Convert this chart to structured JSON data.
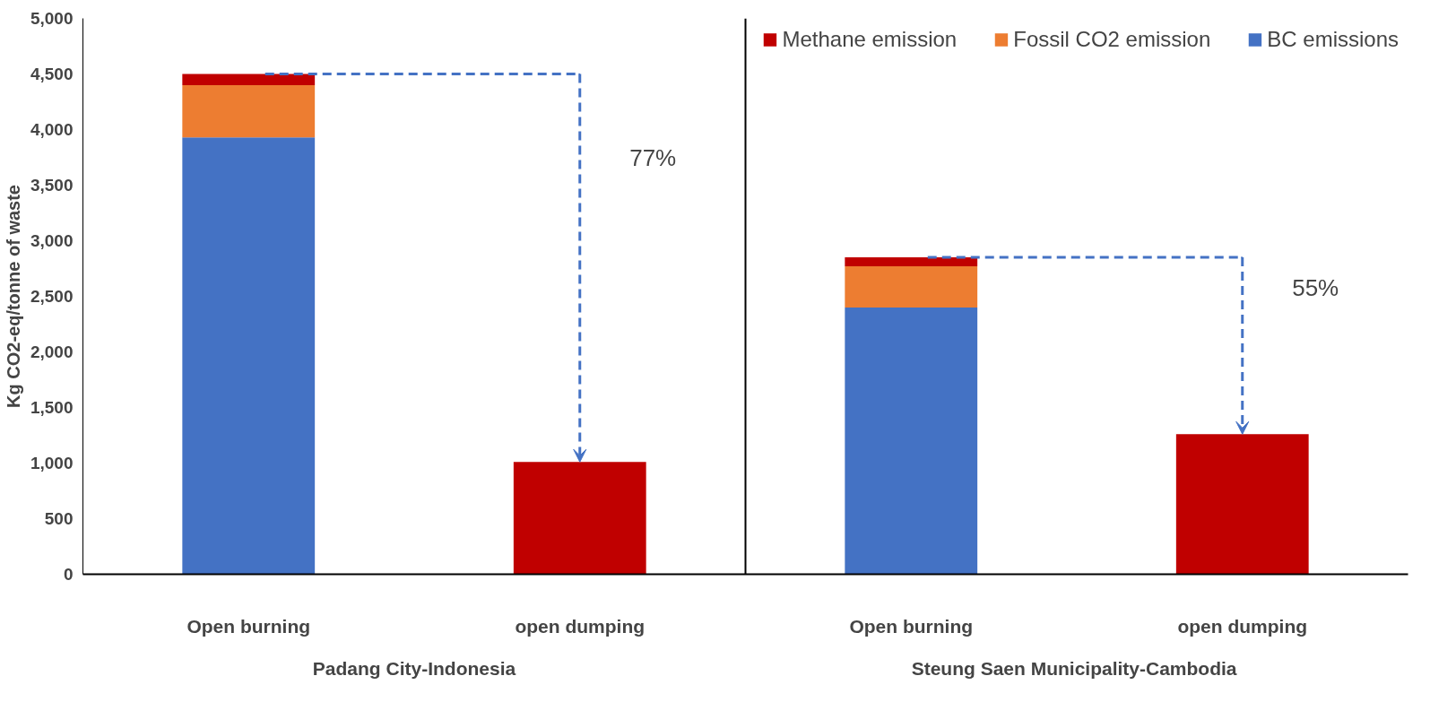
{
  "chart_data": {
    "type": "bar",
    "stacked": true,
    "ylabel": "Kg CO2-eq/tonne of waste",
    "categories": [
      "Open burning",
      "open dumping",
      "Open burning",
      "open dumping"
    ],
    "series": [
      {
        "name": "BC emissions",
        "color": "#4472c4",
        "values": [
          3930,
          null,
          2400,
          null
        ]
      },
      {
        "name": "Fossil CO2 emission",
        "color": "#ed7d31",
        "values": [
          470,
          null,
          370,
          null
        ]
      },
      {
        "name": "Methane emission",
        "color": "#c00000",
        "values": [
          100,
          1010,
          80,
          1260
        ]
      }
    ],
    "ylim": [
      0,
      5000
    ],
    "yticks": [
      {
        "value": 0,
        "label": "0"
      },
      {
        "value": 500,
        "label": "500"
      },
      {
        "value": 1000,
        "label": "1,000"
      },
      {
        "value": 1500,
        "label": "1,500"
      },
      {
        "value": 2000,
        "label": "2,000"
      },
      {
        "value": 2500,
        "label": "2,500"
      },
      {
        "value": 3000,
        "label": "3,000"
      },
      {
        "value": 3500,
        "label": "3,500"
      },
      {
        "value": 4000,
        "label": "4,000"
      },
      {
        "value": 4500,
        "label": "4,500"
      },
      {
        "value": 5000,
        "label": "5,000"
      }
    ],
    "grid": false,
    "legend": "top right",
    "annotations": [
      "77%",
      "55%",
      "Padang City-Indonesia",
      "Steung Saen  Municipality-Cambodia"
    ]
  }
}
